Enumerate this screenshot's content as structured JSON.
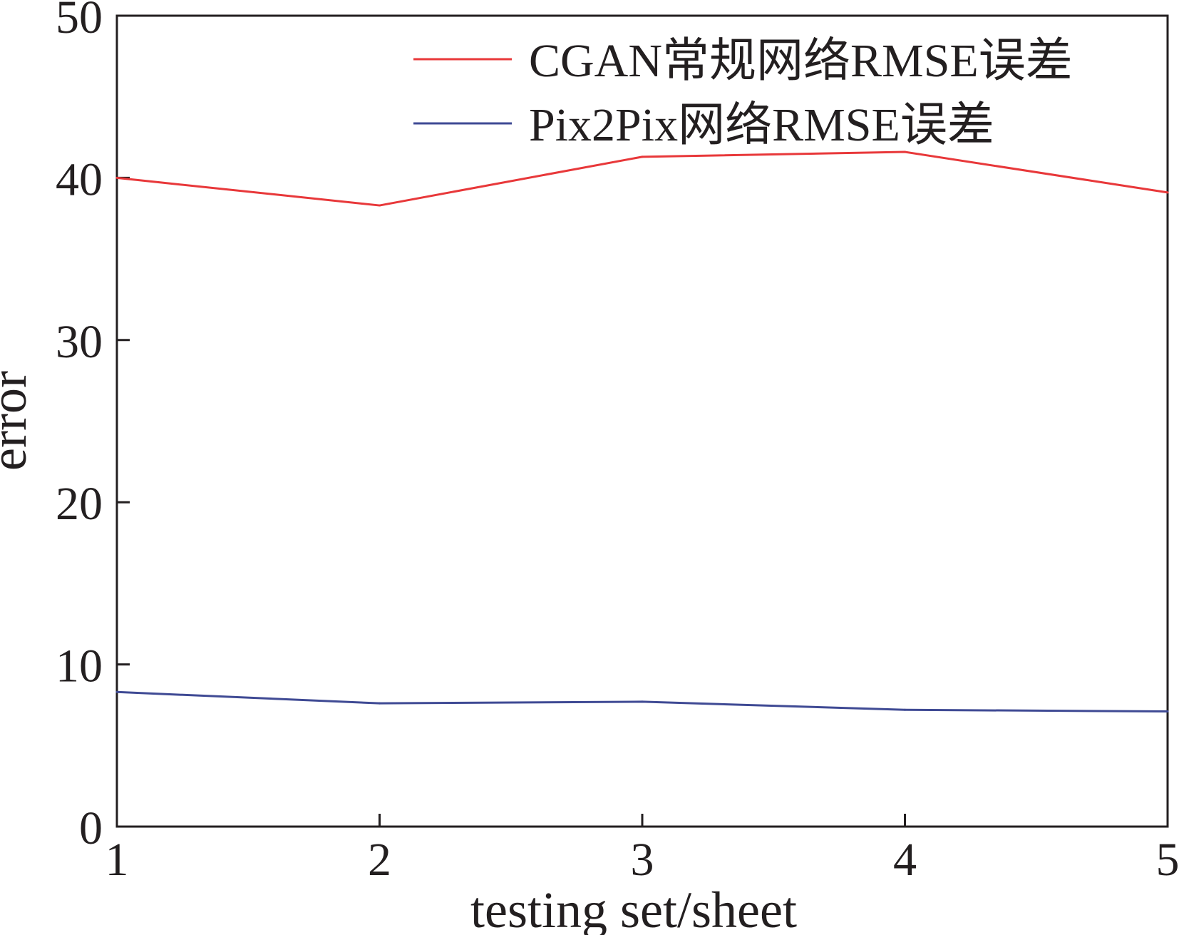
{
  "chart_data": {
    "type": "line",
    "x": [
      1,
      2,
      3,
      4,
      5
    ],
    "series": [
      {
        "name": "CGAN常规网络RMSE误差",
        "color": "#e8383a",
        "values": [
          40.0,
          38.3,
          41.3,
          41.6,
          39.1
        ]
      },
      {
        "name": "Pix2Pix网络RMSE误差",
        "color": "#3f4a94",
        "values": [
          8.3,
          7.6,
          7.7,
          7.2,
          7.1
        ]
      }
    ],
    "xlabel": "testing set/sheet",
    "ylabel": "error",
    "xlim": [
      1,
      5
    ],
    "ylim": [
      0,
      50
    ],
    "x_ticks": [
      "1",
      "2",
      "3",
      "4",
      "5"
    ],
    "y_ticks": [
      "0",
      "10",
      "20",
      "30",
      "40",
      "50"
    ],
    "grid": false,
    "legend_position": "top-right",
    "axis_color": "#231f20"
  }
}
